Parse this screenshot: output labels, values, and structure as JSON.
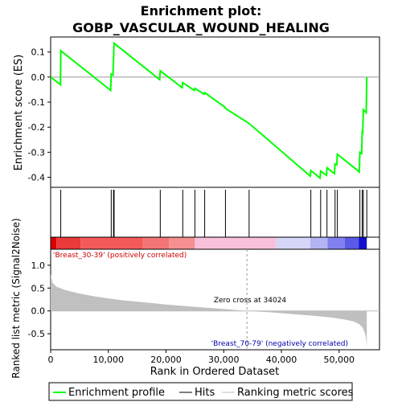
{
  "chart_data": {
    "type": "line",
    "title_line1": "Enrichment plot:",
    "title_line2": "GOBP_VASCULAR_WOUND_HEALING",
    "es_panel": {
      "ylabel": "Enrichment score (ES)",
      "ylim": [
        -0.44,
        0.16
      ],
      "yticks": [
        0.1,
        0.0,
        -0.1,
        -0.2,
        -0.3,
        -0.4
      ],
      "ytick_labels": [
        "0.1",
        "0.0",
        "-0.1",
        "-0.2",
        "-0.3",
        "-0.4"
      ],
      "line_color": "#00ff00",
      "points": [
        [
          0,
          0.0
        ],
        [
          1700,
          -0.03
        ],
        [
          1750,
          0.105
        ],
        [
          10400,
          -0.053
        ],
        [
          10500,
          0.012
        ],
        [
          10800,
          0.008
        ],
        [
          10900,
          0.07
        ],
        [
          11000,
          0.135
        ],
        [
          18900,
          -0.01
        ],
        [
          19000,
          0.025
        ],
        [
          22800,
          -0.042
        ],
        [
          22900,
          -0.022
        ],
        [
          24900,
          -0.053
        ],
        [
          25000,
          -0.045
        ],
        [
          26600,
          -0.068
        ],
        [
          26700,
          -0.062
        ],
        [
          30200,
          -0.12
        ],
        [
          30300,
          -0.125
        ],
        [
          34400,
          -0.185
        ],
        [
          45000,
          -0.395
        ],
        [
          45100,
          -0.373
        ],
        [
          46700,
          -0.403
        ],
        [
          46800,
          -0.375
        ],
        [
          47800,
          -0.392
        ],
        [
          47900,
          -0.362
        ],
        [
          49200,
          -0.385
        ],
        [
          49300,
          -0.347
        ],
        [
          49600,
          -0.35
        ],
        [
          49700,
          -0.308
        ],
        [
          53500,
          -0.378
        ],
        [
          53600,
          -0.3
        ],
        [
          53900,
          -0.305
        ],
        [
          54000,
          -0.218
        ],
        [
          54100,
          -0.22
        ],
        [
          54200,
          -0.13
        ],
        [
          54700,
          -0.142
        ],
        [
          54800,
          0.0
        ]
      ]
    },
    "hits_panel": {
      "hit_positions": [
        1750,
        10500,
        10900,
        11000,
        19000,
        22900,
        25000,
        26700,
        30300,
        34400,
        45100,
        46800,
        47900,
        49300,
        49700,
        53600,
        54000,
        54200,
        54800
      ]
    },
    "metric_panel": {
      "ylabel": "Ranked list metric (Signal2Noise)",
      "ylim": [
        -0.85,
        1.35
      ],
      "yticks": [
        1.0,
        0.5,
        0.0,
        -0.5
      ],
      "ytick_labels": [
        "1.0",
        "0.5",
        "0.0",
        "-0.5"
      ],
      "fill_color": "#c0c0c0",
      "curve": [
        [
          0,
          0.8
        ],
        [
          300,
          0.62
        ],
        [
          1000,
          0.53
        ],
        [
          2500,
          0.46
        ],
        [
          5000,
          0.38
        ],
        [
          8000,
          0.31
        ],
        [
          12000,
          0.24
        ],
        [
          16000,
          0.19
        ],
        [
          20000,
          0.14
        ],
        [
          25000,
          0.09
        ],
        [
          30000,
          0.04
        ],
        [
          34024,
          0.0
        ],
        [
          38000,
          -0.03
        ],
        [
          42000,
          -0.07
        ],
        [
          46000,
          -0.11
        ],
        [
          49000,
          -0.15
        ],
        [
          51000,
          -0.19
        ],
        [
          52500,
          -0.23
        ],
        [
          53500,
          -0.29
        ],
        [
          54100,
          -0.37
        ],
        [
          54500,
          -0.5
        ],
        [
          54700,
          -0.63
        ],
        [
          54800,
          -0.8
        ]
      ],
      "zero_cross_label": "Zero cross at 34024",
      "zero_cross": 34024,
      "pos_label": "'Breast_30-39' (positively correlated)",
      "neg_label": "'Breast_70-79' (negatively correlated)",
      "pos_label_color": "#cc0000",
      "neg_label_color": "#0000aa"
    },
    "xaxis": {
      "xlabel": "Rank in Ordered Dataset",
      "xlim": [
        0,
        57000
      ],
      "xticks": [
        0,
        10000,
        20000,
        30000,
        40000,
        50000
      ],
      "xtick_labels": [
        "0",
        "10,000",
        "20,000",
        "30,000",
        "40,000",
        "50,000"
      ],
      "n_genes": 54800
    },
    "legend": {
      "items": [
        {
          "label": "Enrichment profile",
          "color": "#00ff00"
        },
        {
          "label": "Hits",
          "color": "#000000"
        },
        {
          "label": "Ranking metric scores",
          "color": "#c0c0c0"
        }
      ]
    },
    "heat_bar": [
      {
        "from": 0,
        "to": 1000,
        "color": "#dd0000"
      },
      {
        "from": 1000,
        "to": 5200,
        "color": "#ea3a3a"
      },
      {
        "from": 5200,
        "to": 16000,
        "color": "#f45a5a"
      },
      {
        "from": 16000,
        "to": 20500,
        "color": "#f37575"
      },
      {
        "from": 20500,
        "to": 25000,
        "color": "#f59090"
      },
      {
        "from": 25000,
        "to": 39000,
        "color": "#f9c0dc"
      },
      {
        "from": 39000,
        "to": 45000,
        "color": "#d6d6f8"
      },
      {
        "from": 45000,
        "to": 48000,
        "color": "#b4b4f4"
      },
      {
        "from": 48000,
        "to": 51000,
        "color": "#8080ee"
      },
      {
        "from": 51000,
        "to": 53400,
        "color": "#5a5ae6"
      },
      {
        "from": 53400,
        "to": 54800,
        "color": "#1010cc"
      }
    ]
  }
}
